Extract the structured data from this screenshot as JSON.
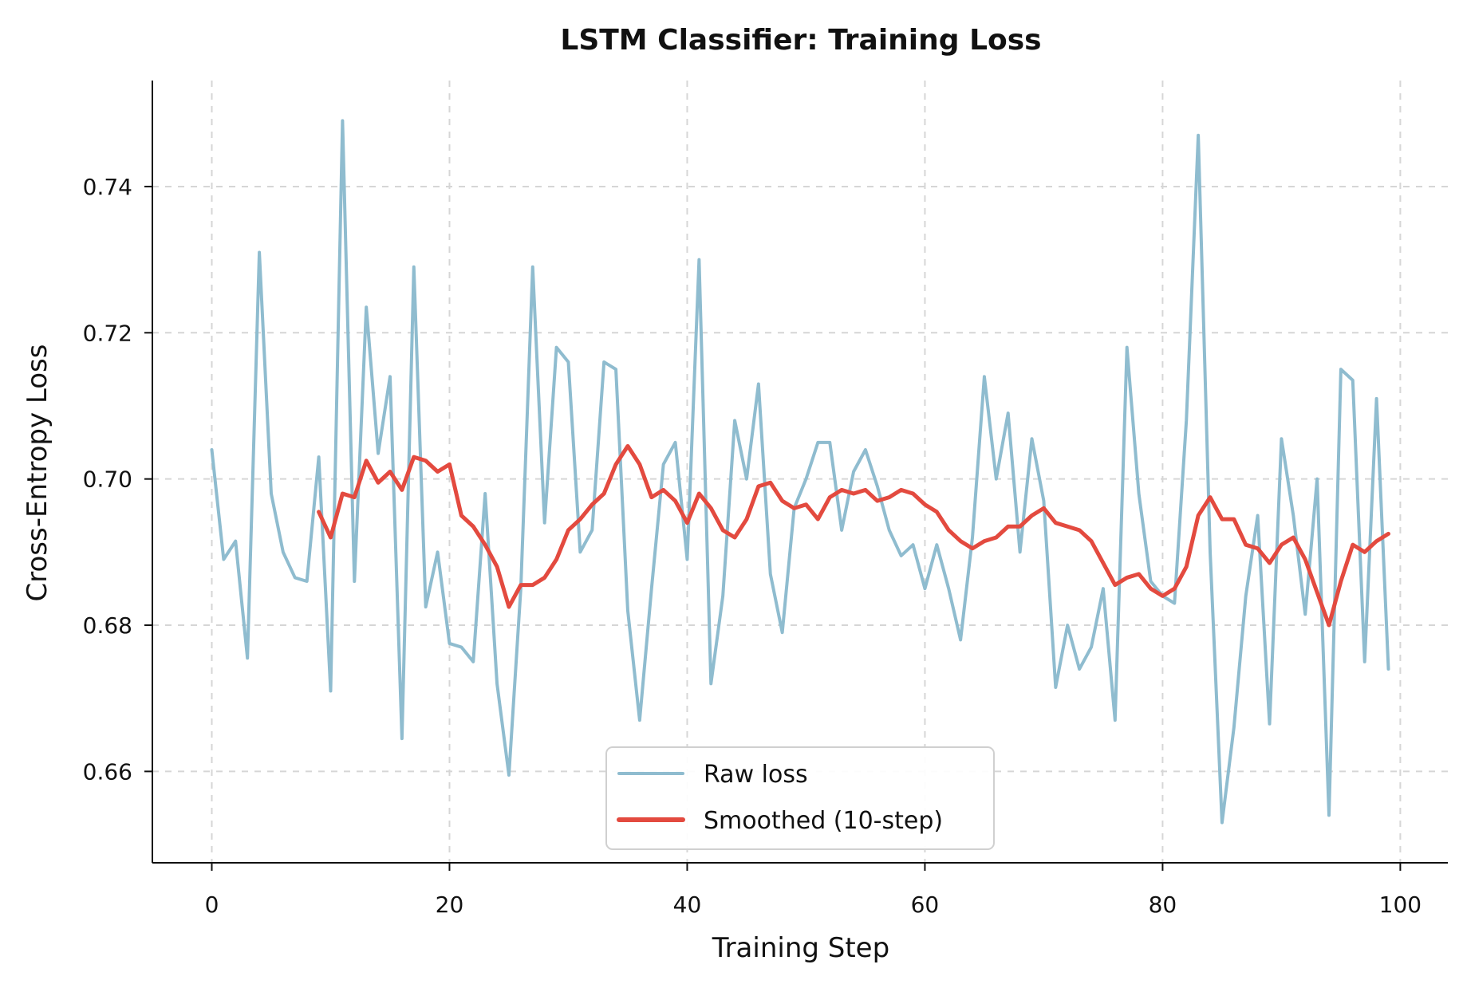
{
  "chart_data": {
    "type": "line",
    "title": "LSTM Classifier: Training Loss",
    "xlabel": "Training Step",
    "ylabel": "Cross-Entropy Loss",
    "xlim": [
      -5,
      104
    ],
    "ylim": [
      0.6475,
      0.7545
    ],
    "xticks": [
      0,
      20,
      40,
      60,
      80,
      100
    ],
    "xtick_labels": [
      "0",
      "20",
      "40",
      "60",
      "80",
      "100"
    ],
    "yticks": [
      0.66,
      0.68,
      0.7,
      0.72,
      0.74
    ],
    "ytick_labels": [
      "0.66",
      "0.68",
      "0.70",
      "0.72",
      "0.74"
    ],
    "grid": true,
    "legend_position": "bottom-center",
    "series": [
      {
        "name": "Raw loss",
        "color": "#8fbccf",
        "x": [
          0,
          1,
          2,
          3,
          4,
          5,
          6,
          7,
          8,
          9,
          10,
          11,
          12,
          13,
          14,
          15,
          16,
          17,
          18,
          19,
          20,
          21,
          22,
          23,
          24,
          25,
          26,
          27,
          28,
          29,
          30,
          31,
          32,
          33,
          34,
          35,
          36,
          37,
          38,
          39,
          40,
          41,
          42,
          43,
          44,
          45,
          46,
          47,
          48,
          49,
          50,
          51,
          52,
          53,
          54,
          55,
          56,
          57,
          58,
          59,
          60,
          61,
          62,
          63,
          64,
          65,
          66,
          67,
          68,
          69,
          70,
          71,
          72,
          73,
          74,
          75,
          76,
          77,
          78,
          79,
          80,
          81,
          82,
          83,
          84,
          85,
          86,
          87,
          88,
          89,
          90,
          91,
          92,
          93,
          94,
          95,
          96,
          97,
          98,
          99
        ],
        "y": [
          0.704,
          0.689,
          0.6915,
          0.6755,
          0.731,
          0.698,
          0.69,
          0.6865,
          0.686,
          0.703,
          0.671,
          0.749,
          0.686,
          0.7235,
          0.7035,
          0.714,
          0.6645,
          0.729,
          0.6825,
          0.69,
          0.6775,
          0.677,
          0.675,
          0.698,
          0.672,
          0.6595,
          0.685,
          0.729,
          0.694,
          0.718,
          0.716,
          0.69,
          0.693,
          0.716,
          0.715,
          0.682,
          0.667,
          0.685,
          0.702,
          0.705,
          0.689,
          0.73,
          0.672,
          0.684,
          0.708,
          0.7,
          0.713,
          0.687,
          0.679,
          0.696,
          0.7,
          0.705,
          0.705,
          0.693,
          0.701,
          0.704,
          0.699,
          0.693,
          0.6895,
          0.691,
          0.685,
          0.691,
          0.685,
          0.678,
          0.692,
          0.714,
          0.7,
          0.709,
          0.69,
          0.7055,
          0.697,
          0.6715,
          0.68,
          0.674,
          0.677,
          0.685,
          0.667,
          0.718,
          0.698,
          0.686,
          0.684,
          0.683,
          0.708,
          0.747,
          0.69,
          0.653,
          0.666,
          0.684,
          0.695,
          0.6665,
          0.7055,
          0.695,
          0.6815,
          0.7,
          0.654,
          0.715,
          0.7135,
          0.675,
          0.711,
          0.674
        ]
      },
      {
        "name": "Smoothed (10-step)",
        "color": "#e34a3f",
        "x": [
          9,
          10,
          11,
          12,
          13,
          14,
          15,
          16,
          17,
          18,
          19,
          20,
          21,
          22,
          23,
          24,
          25,
          26,
          27,
          28,
          29,
          30,
          31,
          32,
          33,
          34,
          35,
          36,
          37,
          38,
          39,
          40,
          41,
          42,
          43,
          44,
          45,
          46,
          47,
          48,
          49,
          50,
          51,
          52,
          53,
          54,
          55,
          56,
          57,
          58,
          59,
          60,
          61,
          62,
          63,
          64,
          65,
          66,
          67,
          68,
          69,
          70,
          71,
          72,
          73,
          74,
          75,
          76,
          77,
          78,
          79,
          80,
          81,
          82,
          83,
          84,
          85,
          86,
          87,
          88,
          89,
          90,
          91,
          92,
          93,
          94,
          95,
          96,
          97,
          98,
          99
        ],
        "y": [
          0.6955,
          0.692,
          0.698,
          0.6975,
          0.7025,
          0.6995,
          0.701,
          0.6985,
          0.703,
          0.7025,
          0.701,
          0.702,
          0.695,
          0.6935,
          0.691,
          0.688,
          0.6825,
          0.6855,
          0.6855,
          0.6865,
          0.689,
          0.693,
          0.6945,
          0.6965,
          0.698,
          0.702,
          0.7045,
          0.702,
          0.6975,
          0.6985,
          0.697,
          0.694,
          0.698,
          0.696,
          0.693,
          0.692,
          0.6945,
          0.699,
          0.6995,
          0.697,
          0.696,
          0.6965,
          0.6945,
          0.6975,
          0.6985,
          0.698,
          0.6985,
          0.697,
          0.6975,
          0.6985,
          0.698,
          0.6965,
          0.6955,
          0.693,
          0.6915,
          0.6905,
          0.6915,
          0.692,
          0.6935,
          0.6935,
          0.695,
          0.696,
          0.694,
          0.6935,
          0.693,
          0.6915,
          0.6885,
          0.6855,
          0.6865,
          0.687,
          0.685,
          0.684,
          0.685,
          0.688,
          0.695,
          0.6975,
          0.6945,
          0.6945,
          0.691,
          0.6905,
          0.6885,
          0.691,
          0.692,
          0.689,
          0.6845,
          0.68,
          0.686,
          0.691,
          0.69,
          0.6915,
          0.6925
        ]
      }
    ]
  }
}
